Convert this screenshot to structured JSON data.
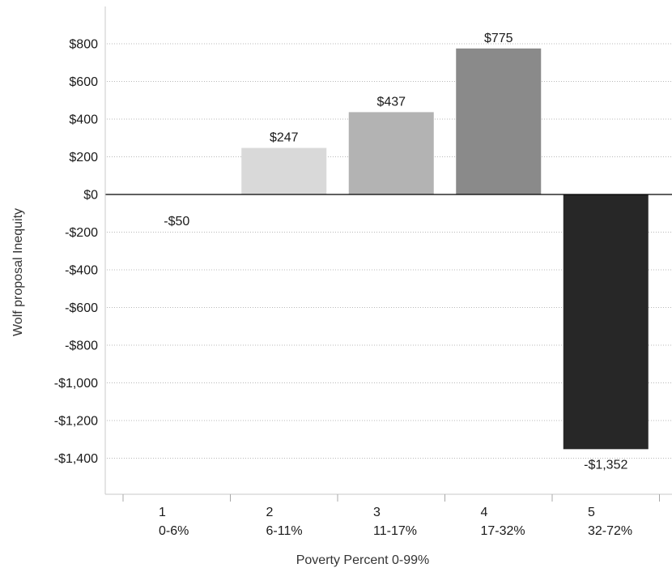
{
  "chart_data": {
    "type": "bar",
    "categories": [
      {
        "code": "1",
        "range": "0-6%"
      },
      {
        "code": "2",
        "range": "6-11%"
      },
      {
        "code": "3",
        "range": "11-17%"
      },
      {
        "code": "4",
        "range": "17-32%"
      },
      {
        "code": "5",
        "range": "32-72%"
      }
    ],
    "values": [
      -50,
      247,
      437,
      775,
      -1352
    ],
    "value_labels": [
      "-$50",
      "$247",
      "$437",
      "$775",
      "-$1,352"
    ],
    "bar_colors": [
      "#ffffff",
      "#d9d9d9",
      "#b3b3b3",
      "#8a8a8a",
      "#272727"
    ],
    "xlabel": "Poverty Percent 0-99%",
    "ylabel": "Wolf proposal Inequity",
    "ylim": [
      -1500,
      950
    ],
    "yticks": [
      800,
      600,
      400,
      200,
      0,
      -200,
      -400,
      -600,
      -800,
      -1000,
      -1200,
      -1400
    ],
    "ytick_labels": [
      "$800",
      "$600",
      "$400",
      "$200",
      "$0",
      "-$200",
      "-$400",
      "-$600",
      "-$800",
      "-$1,000",
      "-$1,200",
      "-$1,400"
    ],
    "grid": true
  }
}
